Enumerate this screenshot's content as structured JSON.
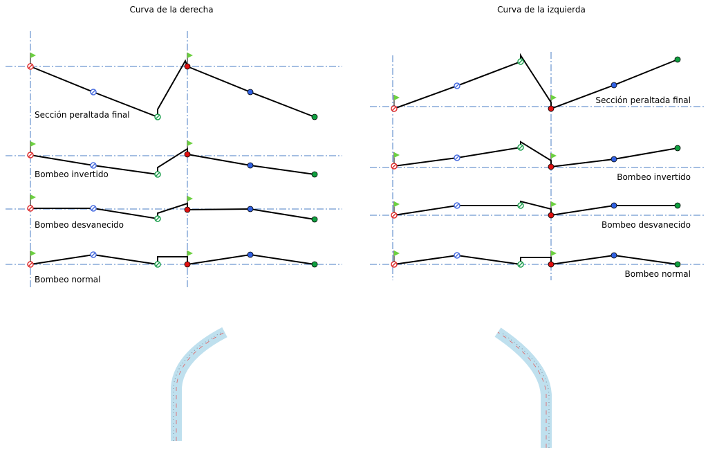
{
  "left": {
    "title": "Curva de la derecha",
    "sections": [
      "Sección peraltada final",
      "Bombeo invertido",
      "Bombeo desvanecido",
      "Bombeo normal"
    ]
  },
  "right": {
    "title": "Curva de la izquierda",
    "sections": [
      "Sección peraltada final",
      "Bombeo invertido",
      "Bombeo desvanecido",
      "Bombeo normal"
    ]
  }
}
